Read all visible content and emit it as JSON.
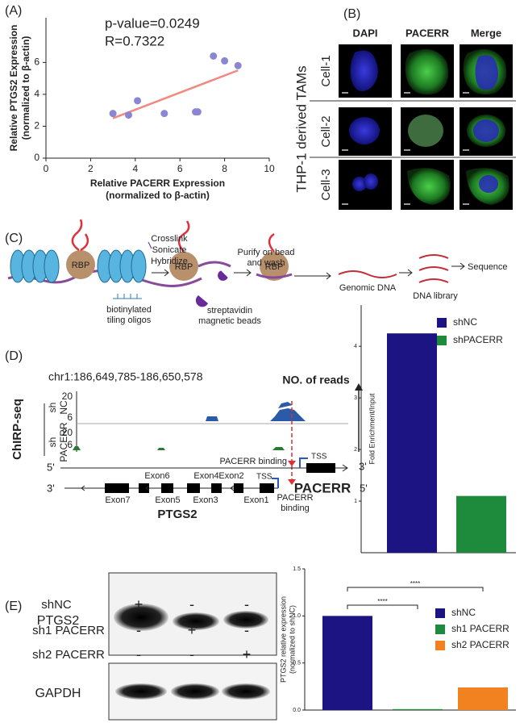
{
  "panel_labels": [
    "(A)",
    "(B)",
    "(C)",
    "(D)",
    "(E)"
  ],
  "chart_data": [
    {
      "type": "scatter",
      "annotations": [
        "p-value=0.0249",
        "R=0.7322"
      ],
      "xlabel": [
        "Relative PACERR Expression",
        "(normalized to β-actin)"
      ],
      "ylabel": [
        "Relative PTGS2 Expression",
        "(normalized to β-actin)"
      ],
      "x": [
        3,
        3.7,
        4.1,
        5.3,
        6.7,
        6.8,
        7.5,
        8,
        8.6
      ],
      "values": [
        2.8,
        2.7,
        3.6,
        2.8,
        2.9,
        2.9,
        6.4,
        6.1,
        5.8
      ],
      "color": "#8b86d2",
      "fit_line": {
        "x": [
          3,
          8.6
        ],
        "y": [
          2.5,
          5.5
        ],
        "color": "#f08a80"
      },
      "xlim": [
        0,
        10
      ],
      "xticks": [
        0,
        2,
        4,
        6,
        8,
        10
      ],
      "ylim": [
        0,
        8.8
      ],
      "yticks": [
        0,
        2,
        4,
        6
      ]
    },
    {
      "type": "bar",
      "ylabel": "Fold Enrichment/Input",
      "series": [
        {
          "name": "shNC",
          "color": "#1c1483",
          "values": [
            4.25
          ]
        },
        {
          "name": "shPACERR",
          "color": "#1e8a3c",
          "values": [
            1.1
          ]
        }
      ],
      "ylim": [
        0,
        4.8
      ],
      "yticks": [
        1,
        2,
        3,
        4
      ]
    },
    {
      "type": "bar",
      "ylabel": [
        "PTGS2 relative expression",
        "(normalized to shNC)"
      ],
      "series": [
        {
          "name": "shNC",
          "color": "#1c1483",
          "values": [
            1.0
          ]
        },
        {
          "name": "sh1 PACERR",
          "color": "#1e8a3c",
          "values": [
            0.01
          ]
        },
        {
          "name": "sh2 PACERR",
          "color": "#f28220",
          "values": [
            0.24
          ]
        }
      ],
      "ylim": [
        0,
        1.5
      ],
      "yticks": [
        {
          "value": 0,
          "label": "0.0"
        },
        0.5,
        {
          "value": 1,
          "label": "1.0"
        },
        1.5
      ],
      "significance": [
        "****",
        "****"
      ]
    }
  ],
  "microscopy": {
    "columns": [
      "DAPI",
      "PACERR",
      "Merge"
    ],
    "rows": [
      "Cell-1",
      "Cell-2",
      "Cell-3"
    ],
    "group_label": "THP-1 derived TAMs"
  },
  "schematic": {
    "rbp": "RBP",
    "step1": [
      "Crosslink",
      "Sonicate",
      "Hybridize"
    ],
    "oligos": [
      "biotinylated",
      "tiling oligos"
    ],
    "step2": [
      "Purify on bead",
      "and wash"
    ],
    "beads": [
      "streptavidin",
      "magnetic beads"
    ],
    "genomic": "Genomic DNA",
    "library": "DNA library",
    "sequence": "Sequence"
  },
  "track": {
    "region": "chr1:186,649,785-186,650,578",
    "reads_label": "NO. of reads",
    "method": "ChIRP-seq",
    "tracks": [
      {
        "label": [
          "sh",
          "NC"
        ],
        "ticks": [
          20,
          6
        ]
      },
      {
        "label": [
          "sh",
          "PACERR"
        ],
        "ticks": [
          20,
          6
        ]
      }
    ],
    "five": "5'",
    "three": "3'",
    "binding": "PACERR binding",
    "binding_lines": [
      "PACERR",
      "binding"
    ],
    "tss": "TSS",
    "gene_top": "PACERR",
    "gene_bottom": "PTGS2",
    "exons": [
      "Exon1",
      "Exon2",
      "Exon3",
      "Exon4",
      "Exon5",
      "Exon6",
      "Exon7"
    ]
  },
  "blot": {
    "conditions": [
      "shNC",
      "sh1 PACERR",
      "sh2 PACERR"
    ],
    "condition_colors": [
      "#2a4fb0",
      "#2e9a3a",
      "#f05a28"
    ],
    "signs": [
      [
        "+",
        "-",
        "-"
      ],
      [
        "-",
        "+",
        "-"
      ],
      [
        "-",
        "-",
        "+"
      ]
    ],
    "proteins": [
      "PTGS2",
      "GAPDH"
    ]
  }
}
